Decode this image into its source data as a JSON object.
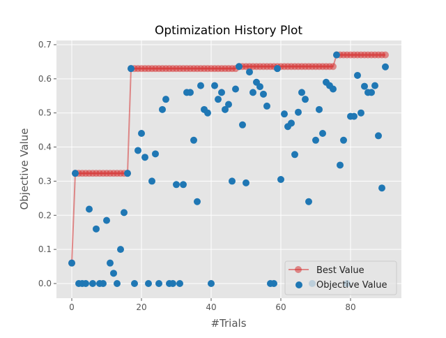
{
  "chart_data": {
    "type": "scatter",
    "title": "Optimization History Plot",
    "xlabel": "#Trials",
    "ylabel": "Objective Value",
    "xlim": [
      -4.5,
      94.5
    ],
    "ylim": [
      -0.04,
      0.71
    ],
    "xticks": [
      0,
      20,
      40,
      60,
      80
    ],
    "yticks": [
      0.0,
      0.1,
      0.2,
      0.3,
      0.4,
      0.5,
      0.6,
      0.7
    ],
    "grid": true,
    "legend_position": "bottom-right",
    "colors": {
      "best": "#d62728",
      "objective": "#1f77b4",
      "background": "#e5e5e5"
    },
    "series": [
      {
        "name": "Best Value",
        "kind": "line-marker",
        "segments": [
          {
            "from": 0,
            "to": 0,
            "value": 0.06
          },
          {
            "from": 1,
            "to": 16,
            "value": 0.323
          },
          {
            "from": 17,
            "to": 47,
            "value": 0.63
          },
          {
            "from": 48,
            "to": 75,
            "value": 0.636
          },
          {
            "from": 76,
            "to": 90,
            "value": 0.67
          }
        ]
      },
      {
        "name": "Objective Value",
        "kind": "scatter",
        "values": [
          0.06,
          0.323,
          0,
          0,
          0,
          0.218,
          0,
          0.16,
          0,
          0,
          0.185,
          0.06,
          0.03,
          0,
          0.1,
          0.208,
          0.323,
          0.63,
          0,
          0.39,
          0.44,
          0.37,
          0,
          0.3,
          0.38,
          0,
          0.51,
          0.54,
          0,
          0,
          0.29,
          0,
          0.29,
          0.56,
          0.56,
          0.42,
          0.24,
          0.58,
          0.51,
          0.5,
          0,
          0.58,
          0.54,
          0.56,
          0.51,
          0.525,
          0.3,
          0.57,
          0.636,
          0.465,
          0.295,
          0.62,
          0.56,
          0.59,
          0.577,
          0.555,
          0.52,
          0,
          0,
          0.63,
          0.305,
          0.497,
          0.46,
          0.47,
          0.378,
          0.502,
          0.56,
          0.54,
          0.24,
          0,
          0.42,
          0.51,
          0.44,
          0.59,
          0.58,
          0.57,
          0.67,
          0.347,
          0.42,
          0,
          0.49,
          0.49,
          0.61,
          0.5,
          0.578,
          0.56,
          0.56,
          0.58,
          0.433,
          0.28,
          0.635
        ]
      }
    ]
  }
}
